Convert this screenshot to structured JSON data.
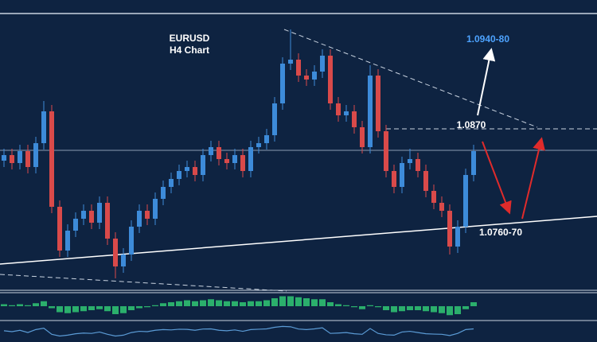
{
  "chart_data": [
    {
      "type": "candlestick",
      "title": "EURUSD",
      "subtitle": "H4 Chart",
      "up_color": "#3d8bd9",
      "down_color": "#d94a4a",
      "ylim": [
        1.0667,
        1.1014
      ],
      "open": [
        1.083,
        1.0837,
        1.0827,
        1.0842,
        1.0822,
        1.0852,
        1.0892,
        1.0772,
        1.0717,
        1.0742,
        1.0757,
        1.0767,
        1.0752,
        1.0777,
        1.0732,
        1.0697,
        1.0712,
        1.0747,
        1.0767,
        1.0757,
        1.0782,
        1.0797,
        1.0807,
        1.0817,
        1.0822,
        1.0812,
        1.0837,
        1.0847,
        1.0832,
        1.0827,
        1.0837,
        1.0817,
        1.0847,
        1.0852,
        1.0862,
        1.0902,
        1.0952,
        1.0957,
        1.0937,
        1.0932,
        1.0942,
        1.0962,
        1.0902,
        1.0887,
        1.0892,
        1.0872,
        1.0847,
        1.0937,
        1.0867,
        1.0817,
        1.0797,
        1.0827,
        1.0832,
        1.0817,
        1.0792,
        1.0777,
        1.0767,
        1.0722,
        1.0747,
        1.0812
      ],
      "high": [
        1.0845,
        1.0845,
        1.085,
        1.085,
        1.086,
        1.0905,
        1.09,
        1.078,
        1.075,
        1.0765,
        1.0775,
        1.0775,
        1.0785,
        1.0785,
        1.074,
        1.072,
        1.0755,
        1.0775,
        1.0775,
        1.079,
        1.0805,
        1.0815,
        1.0825,
        1.083,
        1.083,
        1.0845,
        1.0855,
        1.0855,
        1.084,
        1.0845,
        1.0845,
        1.0855,
        1.086,
        1.087,
        1.091,
        1.096,
        1.0995,
        1.0965,
        1.0945,
        1.095,
        1.097,
        1.097,
        1.091,
        1.09,
        1.09,
        1.088,
        1.095,
        1.0945,
        1.0875,
        1.0825,
        1.0835,
        1.0845,
        1.084,
        1.0825,
        1.08,
        1.0785,
        1.0775,
        1.0755,
        1.082,
        1.085
      ],
      "low": [
        1.0822,
        1.0819,
        1.0819,
        1.0814,
        1.0814,
        1.0844,
        1.0764,
        1.0709,
        1.0709,
        1.0734,
        1.0749,
        1.0744,
        1.0744,
        1.0724,
        1.0682,
        1.0689,
        1.0704,
        1.0739,
        1.0749,
        1.0749,
        1.0774,
        1.0789,
        1.0799,
        1.0809,
        1.0804,
        1.0804,
        1.0829,
        1.0824,
        1.0819,
        1.0819,
        1.0809,
        1.0809,
        1.0839,
        1.0844,
        1.0854,
        1.0894,
        1.0944,
        1.0929,
        1.0924,
        1.0924,
        1.0934,
        1.0894,
        1.0879,
        1.0879,
        1.0864,
        1.0839,
        1.0839,
        1.0859,
        1.0809,
        1.0789,
        1.0789,
        1.0819,
        1.0809,
        1.0784,
        1.0769,
        1.0759,
        1.0712,
        1.0714,
        1.0739,
        1.0804
      ],
      "close": [
        1.0837,
        1.0827,
        1.0842,
        1.0822,
        1.0852,
        1.0892,
        1.0772,
        1.0717,
        1.0742,
        1.0757,
        1.0767,
        1.0752,
        1.0777,
        1.0732,
        1.0697,
        1.0712,
        1.0747,
        1.0767,
        1.0757,
        1.0782,
        1.0797,
        1.0807,
        1.0817,
        1.0822,
        1.0812,
        1.0837,
        1.0847,
        1.0832,
        1.0827,
        1.0837,
        1.0817,
        1.0847,
        1.0852,
        1.0862,
        1.0902,
        1.0952,
        1.0957,
        1.0937,
        1.0932,
        1.0942,
        1.0962,
        1.0902,
        1.0887,
        1.0892,
        1.0872,
        1.0847,
        1.0937,
        1.0867,
        1.0817,
        1.0797,
        1.0827,
        1.0832,
        1.0817,
        1.0792,
        1.0777,
        1.0767,
        1.0722,
        1.0747,
        1.0812,
        1.0842
      ],
      "hline": 1.0843,
      "level": {
        "value": 1.087,
        "label": "1.0870"
      },
      "upper_target": "1.0940-80",
      "lower_target": "1.0760-70"
    },
    {
      "type": "bar",
      "color": "#2fbf71",
      "ylim": [
        -1.2,
        1.2
      ],
      "values": [
        0.2,
        0.1,
        0.2,
        0.1,
        0.3,
        0.5,
        -0.2,
        -0.6,
        -0.7,
        -0.6,
        -0.5,
        -0.4,
        -0.3,
        -0.5,
        -0.8,
        -0.7,
        -0.4,
        -0.2,
        -0.1,
        0.1,
        0.3,
        0.4,
        0.5,
        0.6,
        0.5,
        0.6,
        0.7,
        0.6,
        0.5,
        0.5,
        0.4,
        0.5,
        0.5,
        0.6,
        0.8,
        1.0,
        1.0,
        0.9,
        0.8,
        0.7,
        0.7,
        0.4,
        0.2,
        0.1,
        -0.1,
        -0.3,
        0.1,
        -0.1,
        -0.4,
        -0.6,
        -0.5,
        -0.4,
        -0.4,
        -0.5,
        -0.6,
        -0.7,
        -0.9,
        -0.8,
        -0.3,
        0.4
      ]
    },
    {
      "type": "line",
      "color": "#5b9bd5",
      "ylim": [
        0,
        100
      ],
      "values": [
        55,
        50,
        58,
        45,
        62,
        70,
        35,
        25,
        30,
        38,
        42,
        40,
        48,
        35,
        25,
        30,
        45,
        52,
        50,
        58,
        62,
        60,
        64,
        63,
        58,
        65,
        66,
        58,
        55,
        60,
        52,
        62,
        64,
        66,
        75,
        80,
        78,
        65,
        62,
        66,
        72,
        40,
        42,
        45,
        38,
        35,
        68,
        40,
        32,
        30,
        48,
        52,
        45,
        38,
        36,
        35,
        28,
        40,
        62,
        66
      ]
    }
  ]
}
